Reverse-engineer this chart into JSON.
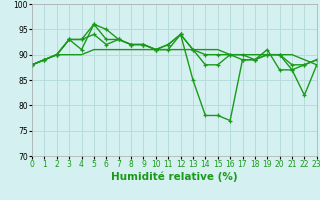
{
  "series": [
    {
      "y": [
        88,
        89,
        90,
        93,
        91,
        96,
        93,
        93,
        92,
        92,
        91,
        91,
        94,
        85,
        78,
        78,
        77,
        89,
        89,
        90,
        90,
        87,
        82,
        88
      ],
      "marker": true
    },
    {
      "y": [
        88,
        89,
        90,
        93,
        93,
        94,
        92,
        93,
        92,
        92,
        91,
        92,
        94,
        91,
        88,
        88,
        90,
        90,
        89,
        91,
        87,
        87,
        88,
        89
      ],
      "marker": true
    },
    {
      "y": [
        88,
        89,
        90,
        90,
        90,
        91,
        91,
        91,
        91,
        91,
        91,
        91,
        91,
        91,
        91,
        91,
        90,
        90,
        90,
        90,
        90,
        90,
        89,
        88
      ],
      "marker": false
    },
    {
      "y": [
        88,
        89,
        90,
        93,
        93,
        96,
        95,
        93,
        92,
        92,
        91,
        92,
        94,
        91,
        90,
        90,
        90,
        89,
        89,
        90,
        90,
        88,
        88,
        89
      ],
      "marker": true
    }
  ],
  "x": [
    0,
    1,
    2,
    3,
    4,
    5,
    6,
    7,
    8,
    9,
    10,
    11,
    12,
    13,
    14,
    15,
    16,
    17,
    18,
    19,
    20,
    21,
    22,
    23
  ],
  "xlabel": "Humidité relative (%)",
  "xlim": [
    0,
    23
  ],
  "ylim": [
    70,
    100
  ],
  "yticks": [
    70,
    75,
    80,
    85,
    90,
    95,
    100
  ],
  "xtick_labels": [
    "0",
    "1",
    "2",
    "3",
    "4",
    "5",
    "6",
    "7",
    "8",
    "9",
    "10",
    "11",
    "12",
    "13",
    "14",
    "15",
    "16",
    "17",
    "18",
    "19",
    "20",
    "21",
    "22",
    "23"
  ],
  "bg_color": "#d5f0f0",
  "grid_color": "#b8dcdc",
  "line_color": "#1a9a1a",
  "line_width": 1.0,
  "marker_size": 3,
  "tick_fontsize": 5.5,
  "xlabel_fontsize": 7.5
}
